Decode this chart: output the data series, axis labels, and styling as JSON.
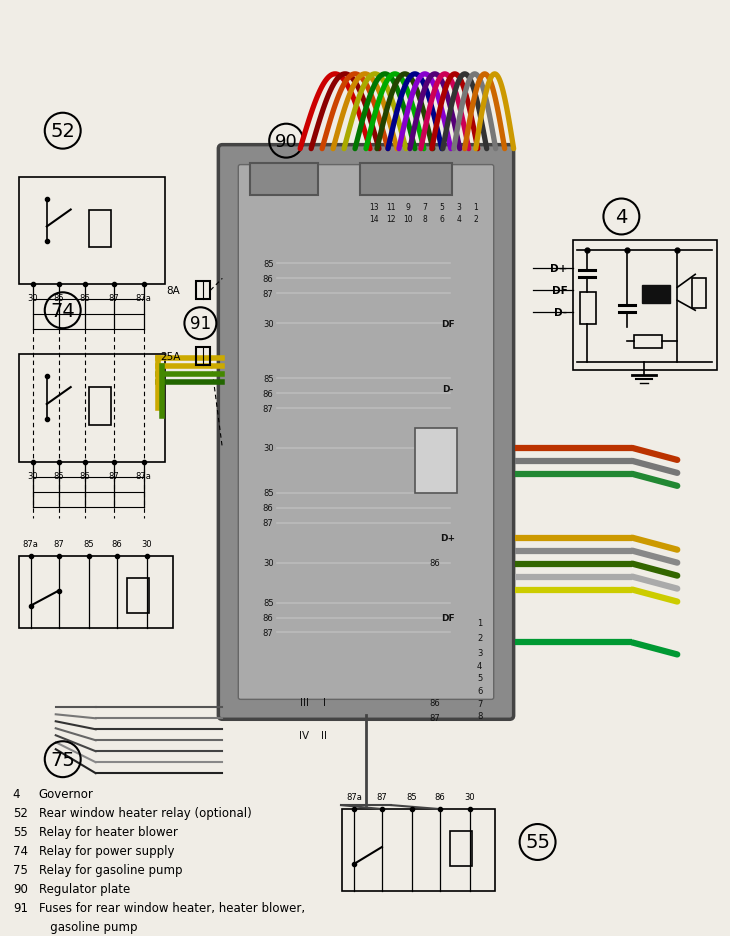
{
  "bg_color": "#f0ede6",
  "legend_items": [
    [
      "4",
      "Governor"
    ],
    [
      "52",
      "Rear window heater relay (optional)"
    ],
    [
      "55",
      "Relay for heater blower"
    ],
    [
      "74",
      "Relay for power supply"
    ],
    [
      "75",
      "Relay for gasoline pump"
    ],
    [
      "90",
      "Regulator plate"
    ],
    [
      "91",
      "Fuses for rear window heater, heater blower,"
    ],
    [
      "",
      "   gasoline pump"
    ]
  ],
  "wire_colors_top": [
    "#cc0000",
    "#8B0000",
    "#cc4400",
    "#cc8800",
    "#aaaa00",
    "#007700",
    "#00aa00",
    "#224400",
    "#000088",
    "#8800cc",
    "#550077",
    "#cc0055",
    "#aa0000",
    "#333333",
    "#777777",
    "#cc6600",
    "#cc9900"
  ]
}
